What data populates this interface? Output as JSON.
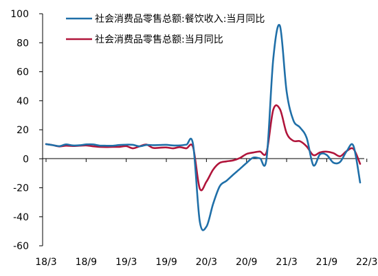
{
  "chart_data": {
    "type": "line",
    "title": "",
    "xlabel": "",
    "ylabel": "",
    "ylim": [
      -60,
      100
    ],
    "yticks": [
      100,
      80,
      60,
      40,
      20,
      0,
      -20,
      -40,
      -60
    ],
    "xticks": [
      "18/3",
      "18/9",
      "19/3",
      "19/9",
      "20/3",
      "20/9",
      "21/3",
      "21/9",
      "22/3"
    ],
    "x_start": "18/3",
    "x_end": "22/3",
    "grid": false,
    "legend_position": "top",
    "series": [
      {
        "name": "社会消费品零售总额:餐饮收入:当月同比",
        "color": "#1f6fa8",
        "values": [
          10.1,
          9.4,
          8.7,
          9.9,
          9.2,
          9.3,
          9.9,
          9.9,
          9.1,
          9.0,
          9.0,
          9.5,
          9.7,
          9.6,
          8.6,
          9.5,
          9.4,
          9.5,
          9.6,
          9.2,
          9.2,
          9.7,
          10.0,
          -43.1,
          -46.8,
          -31.1,
          -18.9,
          -15.2,
          -11.0,
          -7.0,
          -2.9,
          0.8,
          0.3,
          0.2,
          68.9,
          91.6,
          46.4,
          26.6,
          21.6,
          14.4,
          -4.5,
          3.1,
          2.6,
          -2.7,
          -2.2,
          5.3,
          8.9,
          -16.4
        ]
      },
      {
        "name": "社会消费品零售总额:当月同比",
        "color": "#b0143a",
        "values": [
          10.1,
          9.4,
          8.5,
          9.0,
          8.8,
          9.0,
          9.2,
          8.6,
          8.2,
          8.1,
          8.2,
          8.2,
          8.7,
          7.2,
          8.6,
          9.8,
          7.5,
          7.6,
          7.8,
          7.2,
          8.0,
          7.2,
          8.0,
          -20.5,
          -15.8,
          -7.5,
          -2.8,
          -1.8,
          -1.1,
          0.5,
          3.3,
          4.3,
          5.0,
          4.6,
          33.8,
          34.2,
          17.7,
          12.4,
          12.1,
          8.5,
          2.5,
          4.4,
          4.9,
          3.9,
          1.7,
          5.4,
          6.8,
          -3.5
        ]
      }
    ]
  }
}
